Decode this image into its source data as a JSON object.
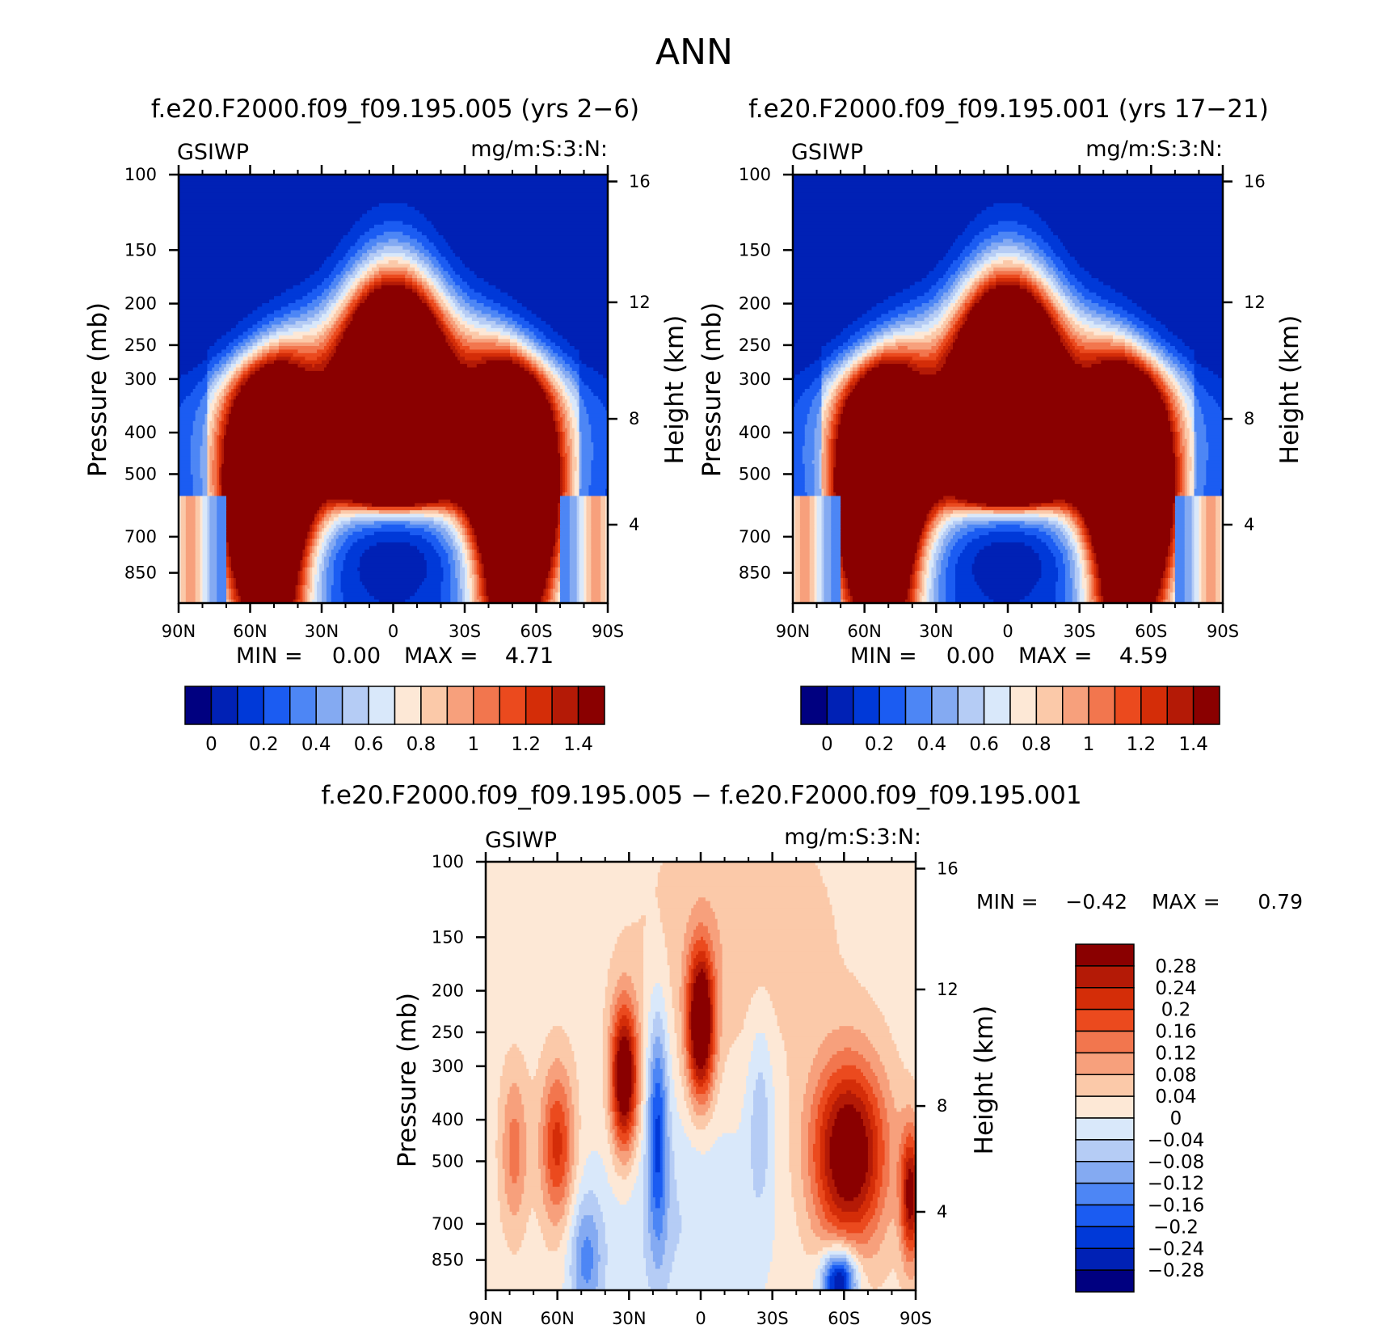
{
  "figure": {
    "title": "ANN",
    "colors": {
      "abs_levels": [
        "#000080",
        "#0021b5",
        "#0039d8",
        "#1b5cf2",
        "#4d86f5",
        "#84aaf2",
        "#b5ccf5",
        "#d9e8fa",
        "#fde8d6",
        "#fbc9a9",
        "#f7a07c",
        "#f2764e",
        "#eb4a1e",
        "#d42d08",
        "#b41a06",
        "#8a0000"
      ],
      "diff_levels": [
        "#000080",
        "#0021b5",
        "#0039d8",
        "#1b5cf2",
        "#4d86f5",
        "#84aaf2",
        "#b5ccf5",
        "#d9e8fa",
        "#fde8d6",
        "#fbc9a9",
        "#f7a07c",
        "#f2764e",
        "#eb4a1e",
        "#d42d08",
        "#b41a06",
        "#8a0000"
      ]
    }
  },
  "panels": [
    {
      "id": "case",
      "title": "f.e20.F2000.f09_f09.195.005 (yrs 2−6)",
      "variable": "GSIWP",
      "units": "mg/m:S:3:N:",
      "ylabel": "Pressure (mb)",
      "y2label": "Height (km)",
      "min_label": "MIN =",
      "min_value": "0.00",
      "max_label": "MAX =",
      "max_value": "4.71",
      "colorbar_labels": [
        "0",
        "0.2",
        "0.4",
        "0.6",
        "0.8",
        "1",
        "1.2",
        "1.4"
      ]
    },
    {
      "id": "control",
      "title": "f.e20.F2000.f09_f09.195.001 (yrs 17−21)",
      "variable": "GSIWP",
      "units": "mg/m:S:3:N:",
      "ylabel": "Pressure (mb)",
      "y2label": "Height (km)",
      "min_label": "MIN =",
      "min_value": "0.00",
      "max_label": "MAX =",
      "max_value": "4.59",
      "colorbar_labels": [
        "0",
        "0.2",
        "0.4",
        "0.6",
        "0.8",
        "1",
        "1.2",
        "1.4"
      ]
    },
    {
      "id": "difference",
      "title": "f.e20.F2000.f09_f09.195.005 − f.e20.F2000.f09_f09.195.001",
      "variable": "GSIWP",
      "units": "mg/m:S:3:N:",
      "ylabel": "Pressure (mb)",
      "y2label": "Height (km)",
      "min_label": "MIN =",
      "min_value": "−0.42",
      "max_label": "MAX =",
      "max_value": "0.79",
      "colorbar_labels": [
        "0.28",
        "0.24",
        "0.2",
        "0.16",
        "0.12",
        "0.08",
        "0.04",
        "0",
        "−0.04",
        "−0.08",
        "−0.12",
        "−0.16",
        "−0.2",
        "−0.24",
        "−0.28"
      ]
    }
  ],
  "chart_data": [
    {
      "type": "heatmap",
      "title": "f.e20.F2000.f09_f09.195.005 (yrs 2−6)",
      "ylabel": "Pressure (mb)",
      "y2label": "Height (km)",
      "x_ticks": [
        "90N",
        "60N",
        "30N",
        "0",
        "30S",
        "60S",
        "90S"
      ],
      "x_values": [
        90,
        60,
        30,
        0,
        -30,
        -60,
        -90
      ],
      "xlim": [
        90,
        -90
      ],
      "y_ticks": [
        100,
        150,
        200,
        250,
        300,
        400,
        500,
        700,
        850
      ],
      "ylim": [
        100,
        1000
      ],
      "y_scale": "log",
      "y2_ticks": [
        16,
        12,
        8,
        4
      ],
      "contour_levels": [
        0,
        0.1,
        0.2,
        0.3,
        0.4,
        0.5,
        0.6,
        0.7,
        0.8,
        0.9,
        1,
        1.1,
        1.2,
        1.3,
        1.4
      ],
      "min": 0.0,
      "max": 4.71,
      "features": [
        {
          "name": "tropical maximum",
          "lat_range": [
            -20,
            20
          ],
          "pressure_range": [
            170,
            550
          ],
          "value": ">1.4"
        },
        {
          "name": "NH midlatitude maximum",
          "lat_range": [
            35,
            75
          ],
          "pressure_range": [
            350,
            1000
          ],
          "value": ">1.4"
        },
        {
          "name": "SH midlatitude maximum",
          "lat_range": [
            -70,
            -35
          ],
          "pressure_range": [
            350,
            1000
          ],
          "value": ">1.4"
        },
        {
          "name": "subtropical minimum",
          "lat_range": [
            -35,
            35
          ],
          "pressure_range": [
            600,
            1000
          ],
          "value": "<0.1"
        },
        {
          "name": "upper-level minimum",
          "lat_range": [
            -90,
            90
          ],
          "pressure_range": [
            100,
            250
          ],
          "value": "<0.1"
        }
      ]
    },
    {
      "type": "heatmap",
      "title": "f.e20.F2000.f09_f09.195.001 (yrs 17−21)",
      "ylabel": "Pressure (mb)",
      "y2label": "Height (km)",
      "x_ticks": [
        "90N",
        "60N",
        "30N",
        "0",
        "30S",
        "60S",
        "90S"
      ],
      "x_values": [
        90,
        60,
        30,
        0,
        -30,
        -60,
        -90
      ],
      "xlim": [
        90,
        -90
      ],
      "y_ticks": [
        100,
        150,
        200,
        250,
        300,
        400,
        500,
        700,
        850
      ],
      "ylim": [
        100,
        1000
      ],
      "y_scale": "log",
      "y2_ticks": [
        16,
        12,
        8,
        4
      ],
      "contour_levels": [
        0,
        0.1,
        0.2,
        0.3,
        0.4,
        0.5,
        0.6,
        0.7,
        0.8,
        0.9,
        1,
        1.1,
        1.2,
        1.3,
        1.4
      ],
      "min": 0.0,
      "max": 4.59,
      "features": [
        {
          "name": "tropical maximum",
          "lat_range": [
            -20,
            20
          ],
          "pressure_range": [
            170,
            550
          ],
          "value": ">1.4"
        },
        {
          "name": "NH midlatitude maximum",
          "lat_range": [
            35,
            75
          ],
          "pressure_range": [
            350,
            1000
          ],
          "value": ">1.4"
        },
        {
          "name": "SH midlatitude maximum",
          "lat_range": [
            -70,
            -35
          ],
          "pressure_range": [
            350,
            1000
          ],
          "value": ">1.4"
        },
        {
          "name": "subtropical minimum",
          "lat_range": [
            -35,
            35
          ],
          "pressure_range": [
            600,
            1000
          ],
          "value": "<0.1"
        },
        {
          "name": "upper-level minimum",
          "lat_range": [
            -90,
            90
          ],
          "pressure_range": [
            100,
            250
          ],
          "value": "<0.1"
        }
      ]
    },
    {
      "type": "heatmap",
      "title": "f.e20.F2000.f09_f09.195.005 − f.e20.F2000.f09_f09.195.001",
      "ylabel": "Pressure (mb)",
      "y2label": "Height (km)",
      "x_ticks": [
        "90N",
        "60N",
        "30N",
        "0",
        "30S",
        "60S",
        "90S"
      ],
      "x_values": [
        90,
        60,
        30,
        0,
        -30,
        -60,
        -90
      ],
      "xlim": [
        90,
        -90
      ],
      "y_ticks": [
        100,
        150,
        200,
        250,
        300,
        400,
        500,
        700,
        850
      ],
      "ylim": [
        100,
        1000
      ],
      "y_scale": "log",
      "y2_ticks": [
        16,
        12,
        8,
        4
      ],
      "contour_levels": [
        -0.28,
        -0.24,
        -0.2,
        -0.16,
        -0.12,
        -0.08,
        -0.04,
        0,
        0.04,
        0.08,
        0.12,
        0.16,
        0.2,
        0.24,
        0.28
      ],
      "min": -0.42,
      "max": 0.79,
      "features": [
        {
          "name": "equatorial upper positive",
          "lat": 0,
          "pressure": 250,
          "value": 0.3
        },
        {
          "name": "NH subtropical positive",
          "lat": 32,
          "pressure": 330,
          "value": 0.3
        },
        {
          "name": "NH 18N negative band",
          "lat": 18,
          "pressure": 380,
          "value": -0.16
        },
        {
          "name": "NH midlatitude positive",
          "lat": 60,
          "pressure": 440,
          "value": 0.16
        },
        {
          "name": "SH midlatitude positive",
          "lat": -62,
          "pressure": 470,
          "value": 0.3
        },
        {
          "name": "SH surface negative",
          "lat": -58,
          "pressure": 900,
          "value": -0.3
        }
      ]
    }
  ]
}
